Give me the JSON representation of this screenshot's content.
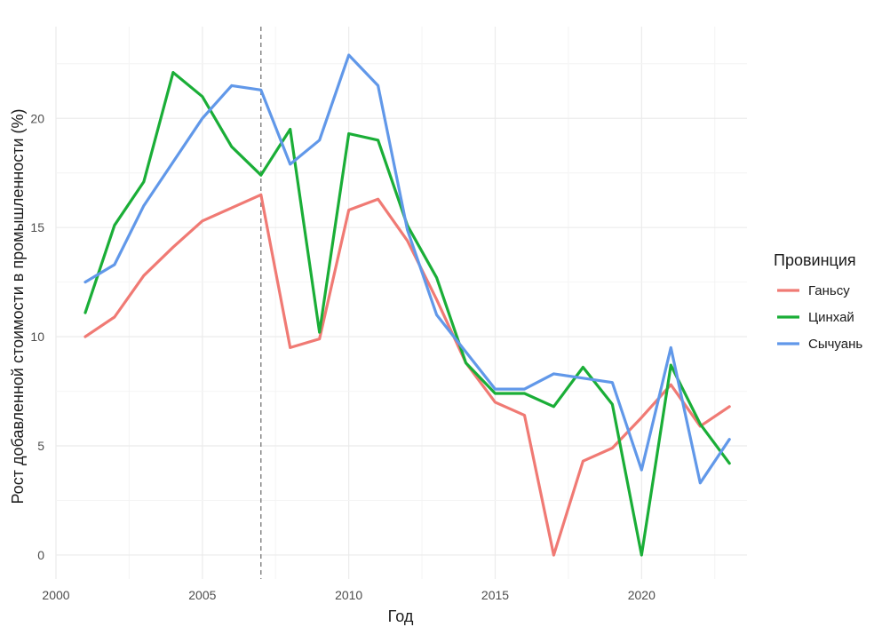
{
  "chart_data": {
    "type": "line",
    "xlabel": "Год",
    "ylabel": "Рост добавленной стоимости в промышленности (%)",
    "xlim": [
      2000,
      2023.6
    ],
    "ylim": [
      -1.1,
      24.2
    ],
    "x_ticks": [
      2000,
      2005,
      2010,
      2015,
      2020
    ],
    "y_ticks": [
      0,
      5,
      10,
      15,
      20
    ],
    "grid": true,
    "legend_position": "right",
    "legend_title": "Провинция",
    "vline": {
      "x": 2007,
      "style": "dashed",
      "color": "#7f7f7f"
    },
    "x": [
      2001,
      2002,
      2003,
      2004,
      2005,
      2006,
      2007,
      2008,
      2009,
      2010,
      2011,
      2012,
      2013,
      2014,
      2015,
      2016,
      2017,
      2018,
      2019,
      2020,
      2021,
      2022,
      2023
    ],
    "series": [
      {
        "name": "Ганьсу",
        "color": "#f07a74",
        "values": [
          10.0,
          10.9,
          12.8,
          14.1,
          15.3,
          15.9,
          16.5,
          9.5,
          9.9,
          15.8,
          16.3,
          14.4,
          11.7,
          8.8,
          7.0,
          6.4,
          0.0,
          4.3,
          4.9,
          6.3,
          7.8,
          5.9,
          6.8
        ]
      },
      {
        "name": "Цинхай",
        "color": "#1aae37",
        "values": [
          11.1,
          15.1,
          17.1,
          22.1,
          21.0,
          18.7,
          17.4,
          19.5,
          10.2,
          19.3,
          19.0,
          15.1,
          12.7,
          8.8,
          7.4,
          7.4,
          6.8,
          8.6,
          6.9,
          0.0,
          8.7,
          6.0,
          4.2
        ]
      },
      {
        "name": "Сычуань",
        "color": "#6198e9",
        "values": [
          12.5,
          13.3,
          16.0,
          18.0,
          20.0,
          21.5,
          21.3,
          17.9,
          19.0,
          22.9,
          21.5,
          14.9,
          11.0,
          9.3,
          7.6,
          7.6,
          8.3,
          8.1,
          7.9,
          3.9,
          9.5,
          3.3,
          5.3
        ]
      }
    ]
  }
}
